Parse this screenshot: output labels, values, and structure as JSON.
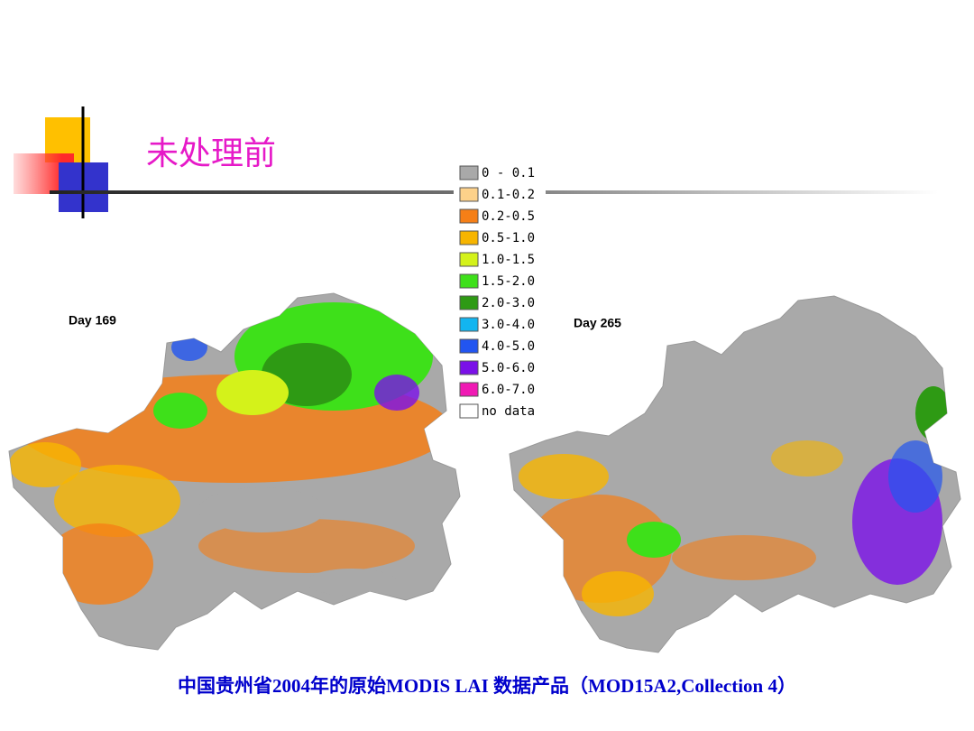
{
  "header": {
    "title": "未处理前"
  },
  "maps": [
    {
      "label": "Day 169"
    },
    {
      "label": "Day 265"
    }
  ],
  "legend": [
    {
      "label": "0 - 0.1",
      "color": "#a9a9a9"
    },
    {
      "label": "0.1-0.2",
      "color": "#fdd18a"
    },
    {
      "label": "0.2-0.5",
      "color": "#f57f17"
    },
    {
      "label": "0.5-1.0",
      "color": "#f7b500"
    },
    {
      "label": "1.0-1.5",
      "color": "#d4f21a"
    },
    {
      "label": "1.5-2.0",
      "color": "#3ee01a"
    },
    {
      "label": "2.0-3.0",
      "color": "#2e9a14"
    },
    {
      "label": "3.0-4.0",
      "color": "#12b5f0"
    },
    {
      "label": "4.0-5.0",
      "color": "#2255f0"
    },
    {
      "label": "5.0-6.0",
      "color": "#7a10e8"
    },
    {
      "label": "6.0-7.0",
      "color": "#f01ab4"
    },
    {
      "label": "no data",
      "color": "#ffffff"
    }
  ],
  "caption": "中国贵州省2004年的原始MODIS LAI  数据产品（MOD15A2,Collection 4）"
}
